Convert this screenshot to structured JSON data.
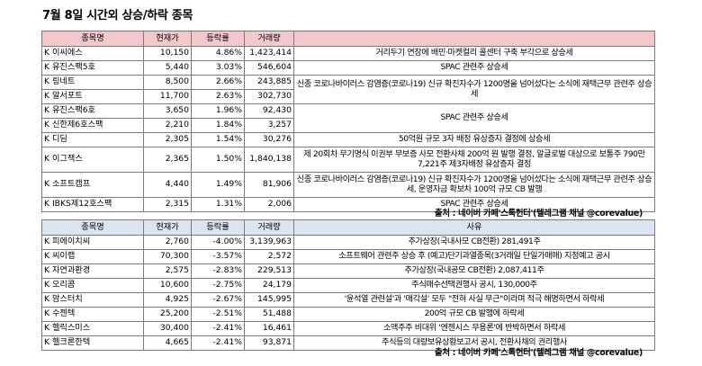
{
  "title": "7월 8일  시간외 상승/하락 종목",
  "headers_up": [
    "종목명",
    "현재가",
    "등락률",
    "거래량",
    ""
  ],
  "headers_down": [
    "종목명",
    "현재가",
    "등락률",
    "거래량",
    "사유"
  ],
  "source": "출처 : 네이버 카페'스톡헌터'(텔레그램 채널 @corevalue)",
  "rising": [
    {
      "name": "K 이씨에스",
      "price": "10,150",
      "change": "4.86%",
      "volume": "1,423,414",
      "reason": "거리두기 연장에 배민·마켓컬리 콜센터 구축 부각으로 상승세"
    },
    {
      "name": "K 유진스팩5호",
      "price": "5,440",
      "change": "3.03%",
      "volume": "546,604",
      "reason": "SPAC 관련주 상승세"
    },
    {
      "name": "K 링네트",
      "price": "8,500",
      "change": "2.66%",
      "volume": "243,885",
      "reason": "신종 코로나바이러스 감염증(코로나19) 신규 확진자수가 1200명을 넘어섰다는 소식에 재택근무 관련주 상승세"
    },
    {
      "name": "K 알서포트",
      "price": "11,700",
      "change": "2.63%",
      "volume": "302,730",
      "reason": null
    },
    {
      "name": "K 유진스팩6호",
      "price": "3,650",
      "change": "1.96%",
      "volume": "92,430",
      "reason": "SPAC 관련주 상승세"
    },
    {
      "name": "K 신한제6호스팩",
      "price": "2,210",
      "change": "1.84%",
      "volume": "3,257",
      "reason": null
    },
    {
      "name": "K 디딤",
      "price": "2,305",
      "change": "1.54%",
      "volume": "30,276",
      "reason": "50억원 규모 3자 배정 유상증자 결정에 상승세"
    },
    {
      "name": "K 이그잭스",
      "price": "2,365",
      "change": "1.50%",
      "volume": "1,840,138",
      "reason": "제 20회차 무기명식 이권부 무보증 사모 전환사채 200억 원 발행 결정, 알글로벌 대상으로 보통주 790만 7,221주 제3자배정 유상증자 결정"
    },
    {
      "name": "K 소프트캠프",
      "price": "4,440",
      "change": "1.49%",
      "volume": "81,906",
      "reason": "신종 코로나바이러스 감염증(코로나19) 신규 확진자수가 1200명을 넘어섰다는 소식에 재택근무 관련주 상승세, 운영자금 확보차 100억 규모 CB 발행"
    },
    {
      "name": "K IBKS제12호스팩",
      "price": "2,315",
      "change": "1.31%",
      "volume": "2,006",
      "reason": "SPAC 관련주 상승세"
    }
  ],
  "falling": [
    {
      "name": "K 피에이치씨",
      "price": "2,760",
      "change": "-4.00%",
      "volume": "3,139,963",
      "reason": "추가상장(국내사모 CB전환) 281,491주"
    },
    {
      "name": "K 씨이랩",
      "price": "70,300",
      "change": "-3.57%",
      "volume": "2,572",
      "reason": "소프트웨어 관련주 상승 후 (예고)단기과열종목(3거래일 단일가매매) 지정예고 공시"
    },
    {
      "name": "K 자연과환경",
      "price": "2,575",
      "change": "-2.83%",
      "volume": "229,513",
      "reason": "추가상장(국내공모 CB전환) 2,087,411주"
    },
    {
      "name": "K 오리콤",
      "price": "10,600",
      "change": "-2.75%",
      "volume": "24,179",
      "reason": "주식매수선택권행사 공시, 130,000주"
    },
    {
      "name": "K 맘스터치",
      "price": "4,925",
      "change": "-2.67%",
      "volume": "145,995",
      "reason": "'윤석열 관련설'과 '매각설' 모두 \"전혀 사실 무근\"이라며 적극 해명하면서 하락세"
    },
    {
      "name": "K 수젠텍",
      "price": "25,200",
      "change": "-2.51%",
      "volume": "51,488",
      "reason": "200억 규모 CB 발행에 하락세"
    },
    {
      "name": "K 헬릭스미스",
      "price": "30,400",
      "change": "-2.41%",
      "volume": "16,461",
      "reason": "소액주주 비대위 '엔젠시스 무용론'에 반박하면서 하락세"
    },
    {
      "name": "K 헬크론한텍",
      "price": "4,665",
      "change": "-2.41%",
      "volume": "93,871",
      "reason": "주식등의 대량보유상황보고서 공시, 전환사채의 권리행사"
    }
  ]
}
